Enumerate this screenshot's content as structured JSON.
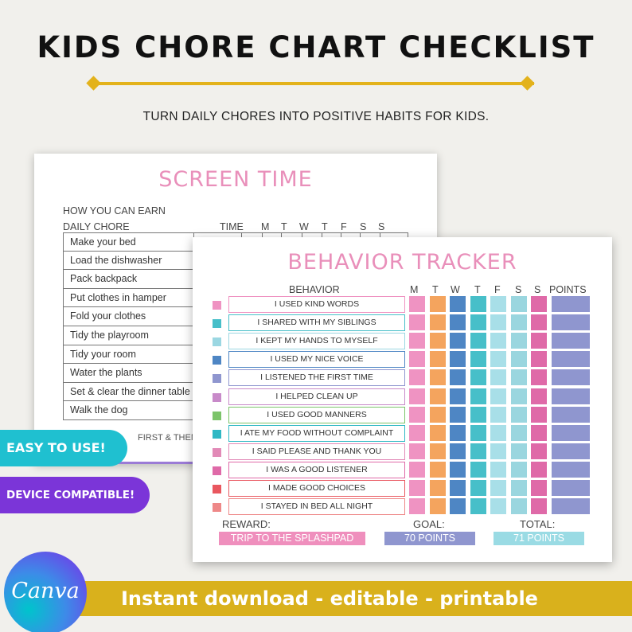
{
  "header": {
    "title": "KIDS CHORE CHART CHECKLIST",
    "subtitle": "TURN DAILY CHORES INTO POSITIVE HABITS FOR KIDS."
  },
  "screen_time": {
    "title": "SCREEN TIME",
    "earn_label": "HOW YOU CAN EARN",
    "chore_header": "DAILY CHORE",
    "time_header": "TIME",
    "days": [
      "M",
      "T",
      "W",
      "T",
      "F",
      "S",
      "S"
    ],
    "chores": [
      "Make your bed",
      "Load the dishwasher",
      "Pack backpack",
      "Put clothes in hamper",
      "Fold your clothes",
      "Tidy the playroom",
      "Tidy your room",
      "Water the plants",
      "Set & clear the dinner table",
      "Walk the dog"
    ],
    "note": "FIRST & THEN PL"
  },
  "behavior_tracker": {
    "title": "BEHAVIOR TRACKER",
    "behavior_header": "BEHAVIOR",
    "points_header": "POINTS",
    "days": [
      "M",
      "T",
      "W",
      "T",
      "F",
      "S",
      "S"
    ],
    "day_colors": [
      "#ef93c2",
      "#f4a45e",
      "#4e86c4",
      "#47bfc9",
      "#a8dfe8",
      "#9ad6df",
      "#df6aa8"
    ],
    "behaviors": [
      {
        "label": "I USED KIND WORDS",
        "color": "#ef93c2"
      },
      {
        "label": "I SHARED WITH MY SIBLINGS",
        "color": "#47bfc9"
      },
      {
        "label": "I KEPT MY HANDS TO MYSELF",
        "color": "#9bd7e2"
      },
      {
        "label": "I USED MY NICE VOICE",
        "color": "#4e86c4"
      },
      {
        "label": "I LISTENED THE FIRST TIME",
        "color": "#8f96cf"
      },
      {
        "label": "I HELPED CLEAN UP",
        "color": "#c88ac9"
      },
      {
        "label": "I USED GOOD MANNERS",
        "color": "#7cc46a"
      },
      {
        "label": "I ATE MY FOOD WITHOUT COMPLAINT",
        "color": "#2fb8c4"
      },
      {
        "label": "I SAID PLEASE AND THANK YOU",
        "color": "#e28ab7"
      },
      {
        "label": "I WAS A GOOD LISTENER",
        "color": "#df6aa8"
      },
      {
        "label": "I MADE GOOD CHOICES",
        "color": "#e9575f"
      },
      {
        "label": "I STAYED IN BED ALL NIGHT",
        "color": "#ee8888"
      }
    ],
    "reward_label": "REWARD:",
    "reward_value": "TRIP TO THE SPLASHPAD",
    "goal_label": "GOAL:",
    "goal_value": "70 POINTS",
    "total_label": "TOTAL:",
    "total_value": "71 POINTS",
    "colors": {
      "reward": "#ef8fbd",
      "goal": "#8f96cf",
      "total": "#9adbe4"
    }
  },
  "badges": {
    "easy": "EASY TO USE!",
    "device": "DEVICE COMPATIBLE!"
  },
  "banner": {
    "logo_text": "Canva",
    "text": "Instant download - editable - printable"
  }
}
